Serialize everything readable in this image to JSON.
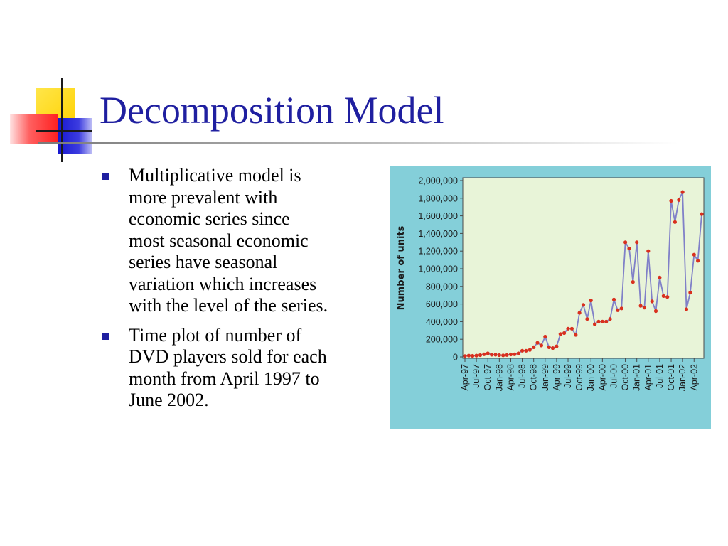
{
  "slide": {
    "title": "Decomposition Model",
    "bullets": [
      {
        "text": "Multiplicative model is\nmore prevalent with\neconomic series since\nmost seasonal economic\nseries have seasonal\nvariation which increases\nwith the level of the series."
      },
      {
        "text": "Time plot of number of\nDVD players sold for each\nmonth from April 1997 to\nJune 2002."
      }
    ]
  },
  "colors": {
    "title": "#1f1fa0",
    "chart_panel": "#84cfd9",
    "plot_area": "#e8f4d8",
    "line": "#8080c8",
    "marker": "#d9301e",
    "deco_yellow": "#ffd800",
    "deco_blue": "#2020d0",
    "deco_red": "#ff3030"
  },
  "chart_data": {
    "type": "line",
    "title": "",
    "xlabel": "",
    "ylabel": "Number of units",
    "ylim": [
      0,
      2000000
    ],
    "yticks": [
      0,
      200000,
      400000,
      600000,
      800000,
      1000000,
      1200000,
      1400000,
      1600000,
      1800000,
      2000000
    ],
    "ytick_labels": [
      "0",
      "200,000",
      "400,000",
      "600,000",
      "800,000",
      "1,000,000",
      "1,200,000",
      "1,400,000",
      "1,600,000",
      "1,800,000",
      "2,000,000"
    ],
    "xtick_labels": [
      "Apr-97",
      "Jul-97",
      "Oct-97",
      "Jan-98",
      "Apr-98",
      "Jul-98",
      "Oct-98",
      "Jan-99",
      "Apr-99",
      "Jul-99",
      "Oct-99",
      "Jan-00",
      "Apr-00",
      "Jul-00",
      "Oct-00",
      "Jan-01",
      "Apr-01",
      "Jul-01",
      "Oct-01",
      "Jan-02",
      "Apr-02"
    ],
    "grid": false,
    "series": [
      {
        "x": [
          "Apr-97",
          "May-97",
          "Jun-97",
          "Jul-97",
          "Aug-97",
          "Sep-97",
          "Oct-97",
          "Nov-97",
          "Dec-97",
          "Jan-98",
          "Feb-98",
          "Mar-98",
          "Apr-98",
          "May-98",
          "Jun-98",
          "Jul-98",
          "Aug-98",
          "Sep-98",
          "Oct-98",
          "Nov-98",
          "Dec-98",
          "Jan-99",
          "Feb-99",
          "Mar-99",
          "Apr-99",
          "May-99",
          "Jun-99",
          "Jul-99",
          "Aug-99",
          "Sep-99",
          "Oct-99",
          "Nov-99",
          "Dec-99",
          "Jan-00",
          "Feb-00",
          "Mar-00",
          "Apr-00",
          "May-00",
          "Jun-00",
          "Jul-00",
          "Aug-00",
          "Sep-00",
          "Oct-00",
          "Nov-00",
          "Dec-00",
          "Jan-01",
          "Feb-01",
          "Mar-01",
          "Apr-01",
          "May-01",
          "Jun-01",
          "Jul-01",
          "Aug-01",
          "Sep-01",
          "Oct-01",
          "Nov-01",
          "Dec-01",
          "Jan-02",
          "Feb-02",
          "Mar-02",
          "Apr-02",
          "May-02",
          "Jun-02"
        ],
        "values": [
          10000,
          15000,
          12000,
          15000,
          20000,
          30000,
          40000,
          25000,
          25000,
          20000,
          18000,
          22000,
          28000,
          30000,
          40000,
          70000,
          70000,
          80000,
          110000,
          160000,
          130000,
          230000,
          110000,
          100000,
          120000,
          260000,
          270000,
          320000,
          320000,
          250000,
          500000,
          590000,
          430000,
          640000,
          370000,
          400000,
          400000,
          400000,
          430000,
          650000,
          530000,
          550000,
          1300000,
          1230000,
          850000,
          1300000,
          580000,
          560000,
          1200000,
          630000,
          520000,
          900000,
          690000,
          680000,
          1770000,
          1530000,
          1780000,
          1870000,
          540000,
          730000,
          1160000,
          1090000,
          1620000
        ]
      }
    ]
  }
}
